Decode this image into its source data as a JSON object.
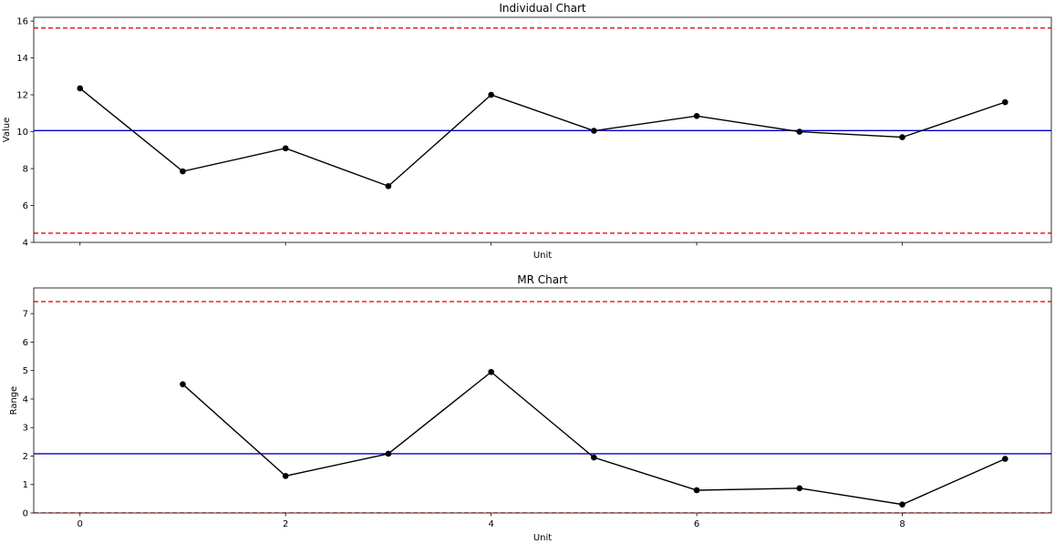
{
  "chart_data": [
    {
      "type": "line",
      "title": "Individual Chart",
      "xlabel": "Unit",
      "ylabel": "Value",
      "xlim": [
        -0.45,
        9.45
      ],
      "ylim": [
        4,
        16.2
      ],
      "xticks": [
        0,
        2,
        4,
        6,
        8
      ],
      "show_xtick_labels": false,
      "yticks": [
        4,
        6,
        8,
        10,
        12,
        14,
        16
      ],
      "x": [
        0,
        1,
        2,
        3,
        4,
        5,
        6,
        7,
        8,
        9
      ],
      "values": [
        12.35,
        7.85,
        9.1,
        7.05,
        12.0,
        10.05,
        10.85,
        10.0,
        9.7,
        11.6
      ],
      "center_line": 10.06,
      "ucl": 15.62,
      "lcl": 4.5,
      "colors": {
        "series": "#000000",
        "center": "#0000cc",
        "limits": "#ee2222"
      }
    },
    {
      "type": "line",
      "title": "MR Chart",
      "xlabel": "Unit",
      "ylabel": "Range",
      "xlim": [
        -0.45,
        9.45
      ],
      "ylim": [
        0,
        7.9
      ],
      "xticks": [
        0,
        2,
        4,
        6,
        8
      ],
      "show_xtick_labels": true,
      "yticks": [
        0,
        1,
        2,
        3,
        4,
        5,
        6,
        7
      ],
      "x": [
        1,
        2,
        3,
        4,
        5,
        6,
        7,
        8,
        9
      ],
      "values": [
        4.52,
        1.3,
        2.08,
        4.95,
        1.95,
        0.8,
        0.87,
        0.3,
        1.9
      ],
      "center_line": 2.08,
      "ucl": 7.42,
      "lcl": 0,
      "colors": {
        "series": "#000000",
        "center": "#0000cc",
        "limits": "#ee2222"
      }
    }
  ]
}
